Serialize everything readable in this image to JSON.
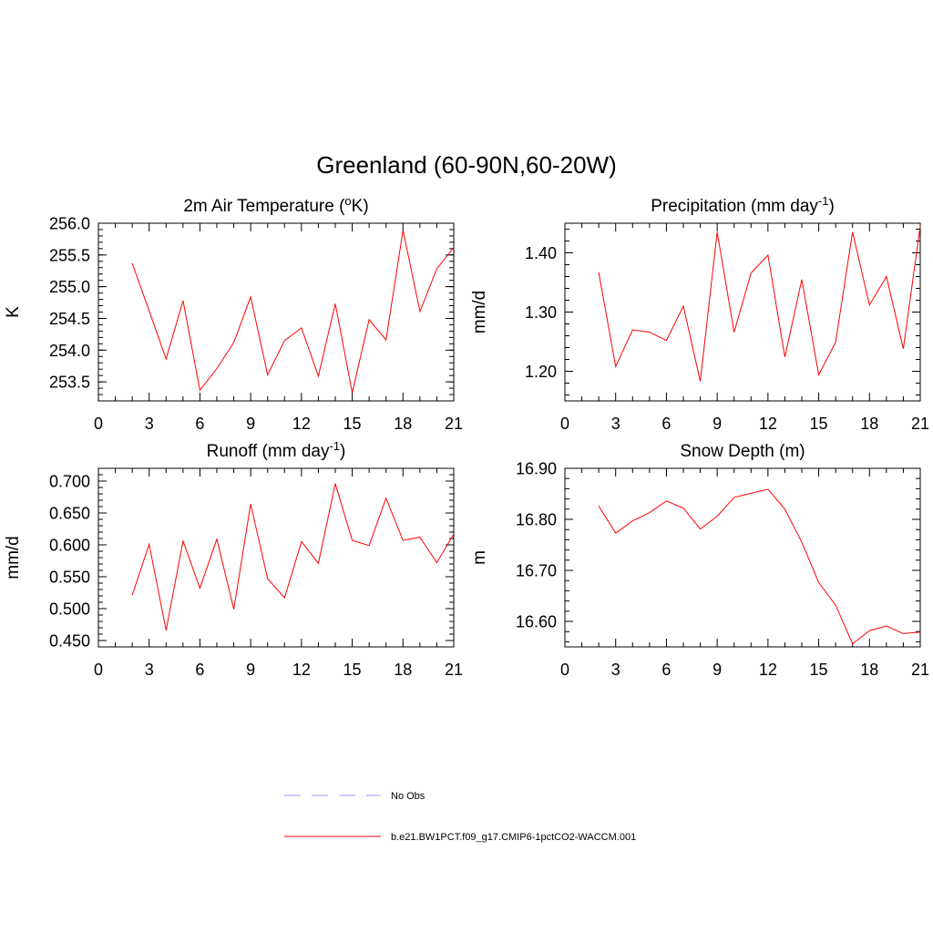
{
  "title": "Greenland (60-90N,60-20W)",
  "chart_data": [
    {
      "type": "line",
      "title": "2m Air Temperature (",
      "title_sup": "o",
      "title_tail": "K)",
      "xlabel": "",
      "ylabel": "K",
      "xlim": [
        0,
        21
      ],
      "ylim": [
        253.2,
        256.0
      ],
      "xticks": [
        0,
        3,
        6,
        9,
        12,
        15,
        18,
        21
      ],
      "yticks": [
        "253.5",
        "254.0",
        "254.5",
        "255.0",
        "255.5",
        "256.0"
      ],
      "series": [
        {
          "name": "b.e21.BW1PCT.f09_g17.CMIP6-1pctCO2-WACCM.001",
          "color": "#ff0000",
          "x": [
            2,
            3,
            4,
            5,
            6,
            7,
            8,
            9,
            10,
            11,
            12,
            13,
            14,
            15,
            16,
            17,
            18,
            19,
            20,
            21
          ],
          "y": [
            255.37,
            254.62,
            253.86,
            254.78,
            253.37,
            253.71,
            254.12,
            254.84,
            253.61,
            254.15,
            254.35,
            253.59,
            254.73,
            253.33,
            254.48,
            254.16,
            255.89,
            254.61,
            255.28,
            255.62
          ]
        }
      ]
    },
    {
      "type": "line",
      "title": "Precipitation (mm day",
      "title_sup": "-1",
      "title_tail": ")",
      "xlabel": "",
      "ylabel": "mm/d",
      "xlim": [
        0,
        21
      ],
      "ylim": [
        1.15,
        1.45
      ],
      "xticks": [
        0,
        3,
        6,
        9,
        12,
        15,
        18,
        21
      ],
      "yticks": [
        "1.20",
        "1.30",
        "1.40"
      ],
      "series": [
        {
          "name": "b.e21.BW1PCT.f09_g17.CMIP6-1pctCO2-WACCM.001",
          "color": "#ff0000",
          "x": [
            2,
            3,
            4,
            5,
            6,
            7,
            8,
            9,
            10,
            11,
            12,
            13,
            14,
            15,
            16,
            17,
            18,
            19,
            20,
            21
          ],
          "y": [
            1.367,
            1.208,
            1.27,
            1.266,
            1.252,
            1.31,
            1.183,
            1.435,
            1.266,
            1.366,
            1.396,
            1.224,
            1.355,
            1.194,
            1.249,
            1.435,
            1.312,
            1.36,
            1.238,
            1.445
          ]
        }
      ]
    },
    {
      "type": "line",
      "title": "Runoff (mm day",
      "title_sup": "-1",
      "title_tail": ")",
      "xlabel": "",
      "ylabel": "mm/d",
      "xlim": [
        0,
        21
      ],
      "ylim": [
        0.44,
        0.72
      ],
      "xticks": [
        0,
        3,
        6,
        9,
        12,
        15,
        18,
        21
      ],
      "yticks": [
        "0.450",
        "0.500",
        "0.550",
        "0.600",
        "0.650",
        "0.700"
      ],
      "series": [
        {
          "name": "b.e21.BW1PCT.f09_g17.CMIP6-1pctCO2-WACCM.001",
          "color": "#ff0000",
          "x": [
            2,
            3,
            4,
            5,
            6,
            7,
            8,
            9,
            10,
            11,
            12,
            13,
            14,
            15,
            16,
            17,
            18,
            19,
            20,
            21
          ],
          "y": [
            0.521,
            0.601,
            0.466,
            0.606,
            0.532,
            0.609,
            0.499,
            0.664,
            0.547,
            0.517,
            0.605,
            0.571,
            0.696,
            0.607,
            0.599,
            0.673,
            0.607,
            0.612,
            0.572,
            0.617
          ]
        }
      ]
    },
    {
      "type": "line",
      "title": "Snow Depth (m)",
      "title_sup": "",
      "title_tail": "",
      "xlabel": "",
      "ylabel": "m",
      "xlim": [
        0,
        21
      ],
      "ylim": [
        16.55,
        16.9
      ],
      "xticks": [
        0,
        3,
        6,
        9,
        12,
        15,
        18,
        21
      ],
      "yticks": [
        "16.60",
        "16.70",
        "16.80",
        "16.90"
      ],
      "series": [
        {
          "name": "b.e21.BW1PCT.f09_g17.CMIP6-1pctCO2-WACCM.001",
          "color": "#ff0000",
          "x": [
            2,
            3,
            4,
            5,
            6,
            7,
            8,
            9,
            10,
            11,
            12,
            13,
            14,
            15,
            16,
            17,
            18,
            19,
            20,
            21
          ],
          "y": [
            16.826,
            16.773,
            16.797,
            16.813,
            16.836,
            16.822,
            16.781,
            16.806,
            16.843,
            16.851,
            16.859,
            16.82,
            16.755,
            16.676,
            16.632,
            16.556,
            16.582,
            16.591,
            16.576,
            16.579
          ]
        }
      ]
    }
  ],
  "legend": {
    "items": [
      {
        "label": "No Obs",
        "color": "#9999ff",
        "style": "dashed"
      },
      {
        "label": "b.e21.BW1PCT.f09_g17.CMIP6-1pctCO2-WACCM.001",
        "color": "#ff0000",
        "style": "solid"
      }
    ]
  }
}
